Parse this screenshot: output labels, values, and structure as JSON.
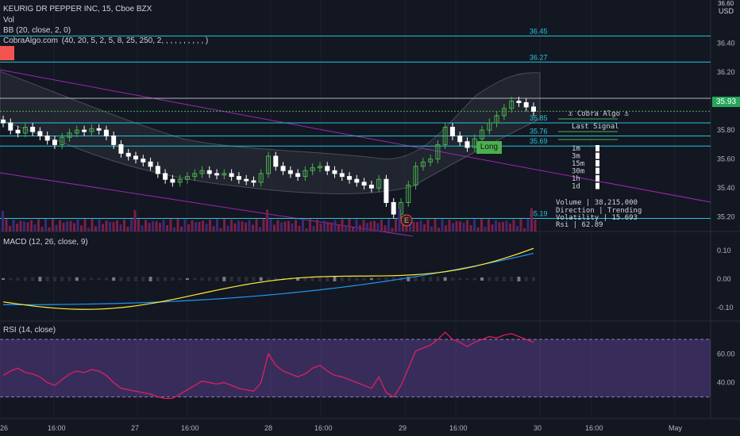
{
  "header": {
    "symbol": "KEURIG DR PEPPER INC, 15, Cboe BZX",
    "vol": "Vol",
    "bb": "BB (20, close, 2, 0)",
    "cobra": "CobraAlgo.com  (40, 20, 5, 2, 5, 8, 25, 250, 2, , , , , , , , , , )",
    "currency_top": "36.60",
    "currency": "USD"
  },
  "levels": [
    "36.45",
    "36.27",
    "35.85",
    "35.76",
    "35.69",
    "35.19"
  ],
  "price_axis": [
    "36.40",
    "36.20",
    "36.00",
    "35.80",
    "35.60",
    "35.40",
    "35.20"
  ],
  "last_price": "35.93",
  "long_label": "Long",
  "e_label": "E",
  "cobra_panel": {
    "title": "Cobra Algo",
    "last_signal": "Last Signal",
    "rows": [
      "1m",
      "3m",
      "15m",
      "30m",
      "1h",
      "1d"
    ],
    "volume": "Volume  |  38,215,000",
    "direction": "Direction  |  Trending",
    "volatility": "Volatility  |  15.693",
    "rsi": "Rsi  |  62.89"
  },
  "macd": {
    "label": "MACD (12, 26, close, 9)",
    "axis": [
      "0.10",
      "0.00",
      "-0.10"
    ]
  },
  "rsi": {
    "label": "RSI (14, close)",
    "axis": [
      "60.00",
      "40.00"
    ]
  },
  "time_axis": [
    "26",
    "16:00",
    "27",
    "16:00",
    "28",
    "16:00",
    "29",
    "16:00",
    "30",
    "16:00",
    "May"
  ],
  "colors": {
    "bg": "#131722",
    "up": "#ffffff",
    "up_green": "#4caf50",
    "down": "#ffffff",
    "level": "#26c6da",
    "trend": "#9c27b0",
    "macd": "#2196f3",
    "signal": "#ffeb3b",
    "rsi_line": "#e91e63",
    "rsi_band": "#7e57c2"
  },
  "chart_data": {
    "type": "candlestick",
    "title": "KEURIG DR PEPPER INC, 15, Cboe BZX",
    "close": [
      35.85,
      35.8,
      35.78,
      35.82,
      35.79,
      35.76,
      35.73,
      35.7,
      35.75,
      35.78,
      35.8,
      35.79,
      35.81,
      35.8,
      35.76,
      35.7,
      35.64,
      35.62,
      35.6,
      35.58,
      35.55,
      35.5,
      35.46,
      35.44,
      35.46,
      35.48,
      35.5,
      35.52,
      35.5,
      35.49,
      35.5,
      35.48,
      35.46,
      35.45,
      35.44,
      35.5,
      35.62,
      35.55,
      35.52,
      35.5,
      35.48,
      35.52,
      35.54,
      35.55,
      35.52,
      35.5,
      35.48,
      35.46,
      35.44,
      35.42,
      35.4,
      35.46,
      35.3,
      35.22,
      35.3,
      35.42,
      35.55,
      35.58,
      35.6,
      35.7,
      35.82,
      35.76,
      35.72,
      35.68,
      35.74,
      35.8,
      35.85,
      35.9,
      35.95,
      36.0,
      35.99,
      35.96,
      35.93
    ],
    "ylim": [
      35.1,
      36.6
    ],
    "rsi_bands": [
      30,
      70
    ],
    "rsi": [
      45,
      48,
      50,
      47,
      46,
      44,
      40,
      38,
      42,
      46,
      48,
      47,
      49,
      48,
      45,
      40,
      36,
      35,
      34,
      33,
      32,
      30,
      29,
      29,
      32,
      35,
      38,
      41,
      40,
      39,
      40,
      38,
      36,
      35,
      34,
      40,
      60,
      52,
      48,
      46,
      44,
      46,
      50,
      52,
      48,
      45,
      44,
      42,
      40,
      38,
      36,
      44,
      33,
      30,
      38,
      50,
      62,
      64,
      66,
      70,
      75,
      70,
      68,
      65,
      68,
      70,
      72,
      71,
      73,
      74,
      72,
      70,
      68
    ]
  }
}
